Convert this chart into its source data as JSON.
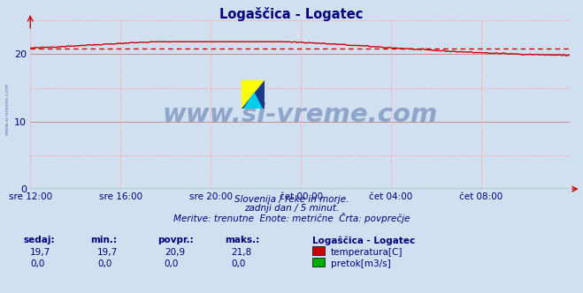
{
  "title": "Logaščica - Logatec",
  "title_color": "#000080",
  "background_color": "#d0e0f0",
  "plot_bg_color": "#d0e0f0",
  "x_tick_labels": [
    "sre 12:00",
    "sre 16:00",
    "sre 20:00",
    "čet 00:00",
    "čet 04:00",
    "čet 08:00"
  ],
  "x_tick_positions": [
    0,
    48,
    96,
    144,
    192,
    240
  ],
  "total_points": 288,
  "ylim": [
    0,
    25
  ],
  "yticks": [
    0,
    10,
    20
  ],
  "temp_avg": 20.9,
  "temp_min": 19.7,
  "temp_max": 21.8,
  "temp_color": "#cc0000",
  "flow_color": "#00aa00",
  "avg_line_color": "#cc0000",
  "grid_color_minor": "#ffaaaa",
  "grid_color_major": "#cc8888",
  "watermark_text": "www.si-vreme.com",
  "watermark_color": "#4060a0",
  "footer_line1": "Slovenija / reke in morje.",
  "footer_line2": "zadnji dan / 5 minut.",
  "footer_line3": "Meritve: trenutne  Enote: metrične  Črta: povprečje",
  "footer_color": "#000080",
  "label_color": "#000080",
  "table_headers": [
    "sedaj:",
    "min.:",
    "povpr.:",
    "maks.:"
  ],
  "table_row1": [
    "19,7",
    "19,7",
    "20,9",
    "21,8"
  ],
  "table_row2": [
    "0,0",
    "0,0",
    "0,0",
    "0,0"
  ],
  "legend_title": "Logaščica - Logatec",
  "legend_temp_label": "temperatura[C]",
  "legend_flow_label": "pretok[m3/s]",
  "tick_color": "#000080",
  "arrow_color": "#cc0000",
  "side_label": "www.si-vreme.com",
  "side_label_color": "#4060a0"
}
